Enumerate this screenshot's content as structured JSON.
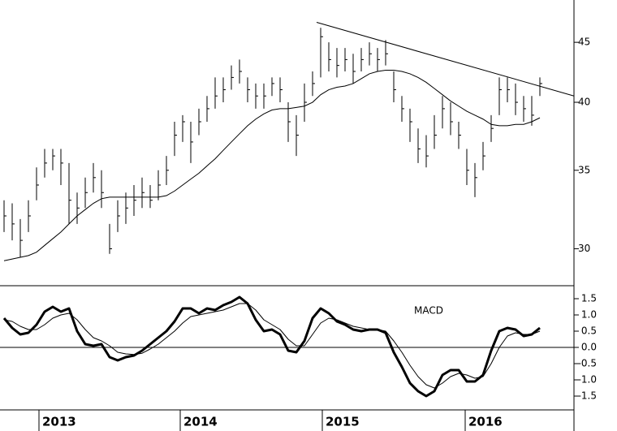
{
  "chart_data": [
    {
      "type": "ohlc",
      "log_scale": true,
      "color": "#000000",
      "ylim": [
        27.9,
        48.9
      ],
      "yticks": [
        30,
        35,
        40,
        45
      ],
      "xlim": [
        -0.5,
        70.2
      ],
      "xticks": [
        {
          "value": 4.3,
          "label": "2013"
        },
        {
          "value": 21.7,
          "label": "2014"
        },
        {
          "value": 39.2,
          "label": "2015"
        },
        {
          "value": 56.8,
          "label": "2016"
        }
      ],
      "high": [
        33,
        32.8,
        31.8,
        33,
        35.2,
        36.5,
        36.5,
        36.5,
        35.5,
        33.5,
        34.5,
        35.5,
        35,
        31.5,
        33,
        33.5,
        34,
        34.5,
        34,
        35,
        36,
        38.5,
        39,
        38.5,
        39.5,
        40.5,
        42,
        42,
        43,
        43.5,
        42,
        41.5,
        41.5,
        42,
        42,
        40,
        39,
        41.5,
        42.5,
        46.3,
        45,
        44.5,
        44.5,
        44,
        44.5,
        45,
        44.5,
        45.2,
        42.5,
        40.5,
        39.5,
        38,
        37.5,
        39,
        40.5,
        40,
        38.5,
        36.5,
        35.5,
        37,
        39,
        42,
        42,
        41.5,
        40.5,
        40.5,
        42
      ],
      "low": [
        31,
        30.5,
        29.5,
        31,
        33,
        34.5,
        35,
        34,
        31.5,
        31.5,
        32.5,
        33.5,
        32.5,
        29.7,
        31,
        31.5,
        32,
        32.5,
        32.5,
        33,
        34,
        36,
        37,
        35.5,
        37.5,
        38.5,
        39.5,
        40,
        41,
        41.5,
        40,
        39.5,
        39.5,
        40.5,
        40,
        37,
        36,
        38.5,
        40.5,
        42,
        42.5,
        42,
        42.5,
        41.5,
        42.5,
        43,
        42.5,
        43,
        40,
        38.5,
        37,
        35.5,
        35.2,
        36.5,
        38,
        37.5,
        36.5,
        34,
        33.2,
        35,
        37,
        39,
        40,
        39,
        38.5,
        38.2,
        40.5
      ],
      "close": [
        32,
        31.5,
        30.5,
        32,
        34,
        35.5,
        36,
        35.5,
        33,
        32.5,
        33.5,
        34.5,
        33.5,
        30,
        32,
        32.5,
        33,
        33.5,
        33,
        34,
        35,
        37.5,
        38.5,
        37,
        38.5,
        39.5,
        40.5,
        41,
        42,
        42.5,
        41,
        40.5,
        40.5,
        41.5,
        41,
        38.5,
        37.5,
        40,
        41.5,
        45.5,
        43.5,
        43,
        43.5,
        42.5,
        43.5,
        44,
        43.5,
        44,
        41,
        39.5,
        38.5,
        36.5,
        36,
        37.5,
        39.5,
        38.5,
        37.5,
        35,
        34.5,
        36,
        38,
        41,
        41,
        40,
        39.5,
        39,
        41.5
      ],
      "moving_average": {
        "color": "#000000",
        "values": [
          29.3,
          29.4,
          29.5,
          29.6,
          29.8,
          30.2,
          30.6,
          31,
          31.5,
          32,
          32.4,
          32.8,
          33.1,
          33.2,
          33.2,
          33.2,
          33.2,
          33.2,
          33.2,
          33.2,
          33.3,
          33.6,
          34,
          34.4,
          34.8,
          35.3,
          35.8,
          36.4,
          37,
          37.6,
          38.2,
          38.7,
          39.1,
          39.4,
          39.5,
          39.5,
          39.6,
          39.7,
          40,
          40.6,
          41,
          41.2,
          41.3,
          41.5,
          41.9,
          42.3,
          42.5,
          42.6,
          42.6,
          42.5,
          42.3,
          42,
          41.6,
          41.1,
          40.6,
          40.1,
          39.7,
          39.3,
          39,
          38.7,
          38.3,
          38.2,
          38.2,
          38.3,
          38.3,
          38.5,
          38.8
        ]
      },
      "trendline": {
        "color": "#000000",
        "x": [
          38.5,
          70.2
        ],
        "values": [
          46.8,
          40.5
        ]
      }
    },
    {
      "type": "line",
      "title": "MACD",
      "ylim": [
        -1.925,
        1.9
      ],
      "xlim": [
        -0.5,
        70.2
      ],
      "yticks": [
        1.5,
        {
          "value": 1,
          "label": "1.0"
        },
        0.5,
        {
          "value": 0,
          "label": "0.0"
        },
        -0.5,
        {
          "value": -1,
          "label": "-1.0"
        },
        -1.5
      ],
      "series": [
        {
          "color": "#000000",
          "width": 3,
          "values": [
            0.9,
            0.6,
            0.4,
            0.45,
            0.7,
            1.1,
            1.25,
            1.1,
            1.2,
            0.5,
            0.1,
            0.05,
            0.1,
            -0.3,
            -0.4,
            -0.3,
            -0.25,
            -0.1,
            0.1,
            0.3,
            0.5,
            0.8,
            1.2,
            1.2,
            1.05,
            1.2,
            1.15,
            1.3,
            1.4,
            1.55,
            1.35,
            0.85,
            0.5,
            0.55,
            0.4,
            -0.1,
            -0.15,
            0.2,
            0.9,
            1.2,
            1.05,
            0.8,
            0.7,
            0.55,
            0.5,
            0.55,
            0.55,
            0.45,
            -0.15,
            -0.6,
            -1.1,
            -1.35,
            -1.5,
            -1.35,
            -0.85,
            -0.7,
            -0.7,
            -1.05,
            -1.05,
            -0.85,
            -0.1,
            0.5,
            0.6,
            0.55,
            0.35,
            0.4,
            0.6
          ]
        },
        {
          "color": "#000000",
          "width": 1,
          "values": [
            0.85,
            0.8,
            0.65,
            0.55,
            0.55,
            0.7,
            0.9,
            1,
            1.05,
            0.85,
            0.55,
            0.3,
            0.2,
            0.05,
            -0.15,
            -0.2,
            -0.22,
            -0.18,
            -0.05,
            0.1,
            0.3,
            0.5,
            0.75,
            0.95,
            1,
            1.05,
            1.1,
            1.15,
            1.25,
            1.35,
            1.35,
            1.15,
            0.85,
            0.7,
            0.55,
            0.25,
            0.05,
            0.05,
            0.4,
            0.75,
            0.9,
            0.85,
            0.75,
            0.65,
            0.6,
            0.55,
            0.55,
            0.5,
            0.2,
            -0.15,
            -0.55,
            -0.9,
            -1.15,
            -1.25,
            -1.1,
            -0.9,
            -0.8,
            -0.85,
            -0.95,
            -0.9,
            -0.5,
            0,
            0.35,
            0.45,
            0.4,
            0.4,
            0.5
          ]
        }
      ]
    }
  ]
}
